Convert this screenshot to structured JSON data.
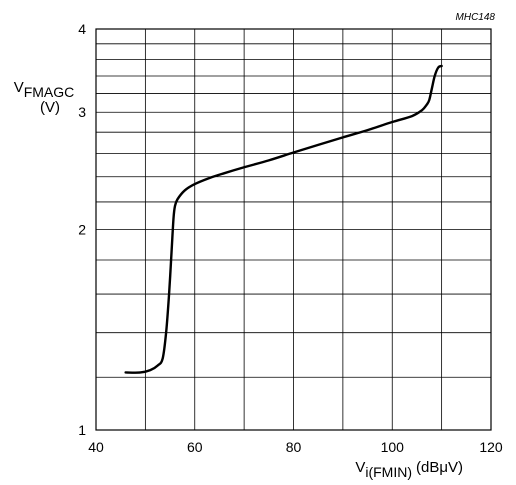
{
  "chart_data": {
    "type": "line",
    "figure_code": "MHC148",
    "ylabel": {
      "main": "V",
      "sub": "FMAGC",
      "unit": "(V)"
    },
    "xlabel": {
      "main": "V",
      "sub": "i(FMIN)",
      "unit": "(dBμV)"
    },
    "xlim": [
      40,
      120
    ],
    "ylim": [
      1,
      4
    ],
    "y_scale": "log",
    "x_ticks": [
      40,
      60,
      80,
      100,
      120
    ],
    "x_tick_labels": [
      "40",
      "60",
      "80",
      "100",
      "120"
    ],
    "y_ticks": [
      1,
      2,
      3,
      4
    ],
    "y_tick_labels": [
      "1",
      "2",
      "3",
      "4"
    ],
    "grid": true,
    "x_grid_step": 10,
    "y_grid_values": [
      1.2,
      1.4,
      1.6,
      1.8,
      2.0,
      2.2,
      2.4,
      2.6,
      2.8,
      3.0,
      3.2,
      3.4,
      3.6,
      3.8
    ],
    "series": [
      {
        "color": "#000000",
        "x": [
          46,
          49,
          51,
          52.5,
          53.5,
          54.2,
          54.8,
          55.3,
          55.7,
          56,
          56.5,
          58,
          60,
          63,
          66,
          70,
          75,
          80,
          85,
          90,
          95,
          100,
          104,
          106,
          107,
          107.5,
          108,
          108.6,
          109.3,
          110
        ],
        "y": [
          1.22,
          1.22,
          1.23,
          1.25,
          1.28,
          1.4,
          1.6,
          1.85,
          2.08,
          2.17,
          2.22,
          2.29,
          2.34,
          2.39,
          2.43,
          2.48,
          2.54,
          2.61,
          2.68,
          2.75,
          2.82,
          2.9,
          2.96,
          3.02,
          3.08,
          3.13,
          3.25,
          3.4,
          3.5,
          3.52
        ]
      }
    ]
  }
}
